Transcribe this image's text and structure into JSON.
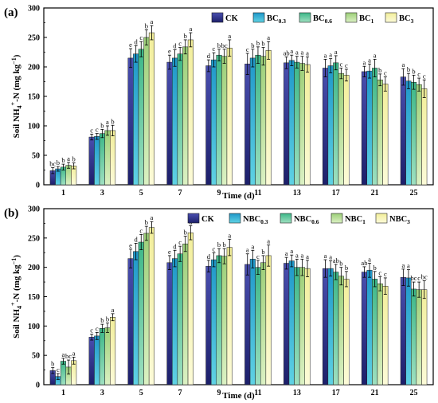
{
  "chart_data": [
    {
      "type": "bar",
      "panel_label": "(a)",
      "ylabel": "Soil NH4+-N (mg kg−1)",
      "xlabel": "Time (d)",
      "ylim": [
        0,
        300
      ],
      "yticks": [
        0,
        50,
        100,
        150,
        200,
        250,
        300
      ],
      "categories": [
        "1",
        "3",
        "5",
        "7",
        "9",
        "11",
        "13",
        "17",
        "21",
        "25"
      ],
      "legend_position": "top-right",
      "series": [
        {
          "name": "CK",
          "legend_base": "CK",
          "legend_sub": "",
          "color_top": "#4a4fb0",
          "color_bottom": "#1c1f6a",
          "values": [
            24,
            81,
            215,
            208,
            202,
            205,
            207,
            198,
            192,
            183
          ],
          "errors": [
            5,
            5,
            16,
            12,
            10,
            18,
            10,
            15,
            9,
            14
          ],
          "letters": [
            "bc",
            "c",
            "e",
            "e",
            "d",
            "c",
            "ab",
            "a",
            "a",
            "a"
          ]
        },
        {
          "name": "BC0.3",
          "legend_base": "BC",
          "legend_sub": "0.3",
          "color_top": "#1f97c9",
          "color_bottom": "#5fd2e4",
          "values": [
            27,
            82,
            222,
            215,
            212,
            215,
            211,
            202,
            193,
            176
          ],
          "errors": [
            4,
            5,
            14,
            14,
            12,
            15,
            9,
            12,
            12,
            13
          ],
          "letters": [
            "b",
            "c",
            "d",
            "d",
            "c",
            "b",
            "a",
            "a",
            "a",
            "b"
          ]
        },
        {
          "name": "BC0.6",
          "legend_base": "BC",
          "legend_sub": "0.6",
          "color_top": "#3cb788",
          "color_bottom": "#9ee0c0",
          "values": [
            30,
            87,
            230,
            222,
            220,
            220,
            208,
            207,
            198,
            174
          ],
          "errors": [
            5,
            7,
            13,
            11,
            10,
            14,
            10,
            12,
            15,
            12
          ],
          "letters": [
            "b",
            "b",
            "c",
            "c",
            "b",
            "b",
            "a",
            "a",
            "a",
            "b"
          ]
        },
        {
          "name": "BC1",
          "legend_base": "BC",
          "legend_sub": "1",
          "color_top": "#9ccf78",
          "color_bottom": "#dbf1c3",
          "values": [
            33,
            92,
            250,
            234,
            218,
            218,
            206,
            189,
            178,
            170
          ],
          "errors": [
            5,
            8,
            13,
            12,
            12,
            15,
            12,
            9,
            10,
            11
          ],
          "letters": [
            "a",
            "a",
            "b",
            "b",
            "bc",
            "b",
            "a",
            "c",
            "b",
            "c"
          ]
        },
        {
          "name": "BC3",
          "legend_base": "BC",
          "legend_sub": "3",
          "color_top": "#f2ee9a",
          "color_bottom": "#fcfbd8",
          "values": [
            32,
            92,
            258,
            246,
            232,
            228,
            204,
            186,
            171,
            163
          ],
          "errors": [
            5,
            9,
            12,
            12,
            14,
            15,
            13,
            10,
            12,
            15
          ],
          "letters": [
            "b",
            "b",
            "a",
            "a",
            "a",
            "a",
            "a",
            "c",
            "c",
            "c"
          ]
        }
      ]
    },
    {
      "type": "bar",
      "panel_label": "(b)",
      "ylabel": "Soil NH4+-N (mg kg−1)",
      "xlabel": "Time (d)",
      "ylim": [
        0,
        300
      ],
      "yticks": [
        0,
        50,
        100,
        150,
        200,
        250,
        300
      ],
      "categories": [
        "1",
        "3",
        "5",
        "7",
        "9",
        "11",
        "13",
        "17",
        "21",
        "25"
      ],
      "legend_position": "top-right",
      "series": [
        {
          "name": "CK",
          "legend_base": "CK",
          "legend_sub": "",
          "color_top": "#4a4fb0",
          "color_bottom": "#1c1f6a",
          "values": [
            24,
            81,
            215,
            208,
            202,
            205,
            207,
            198,
            192,
            183
          ],
          "errors": [
            5,
            5,
            16,
            12,
            10,
            18,
            10,
            15,
            9,
            14
          ],
          "letters": [
            "b",
            "c",
            "e",
            "e",
            "d",
            "a",
            "a",
            "a",
            "ab",
            "a"
          ]
        },
        {
          "name": "NBC0.3",
          "legend_base": "NBC",
          "legend_sub": "0.3",
          "color_top": "#1f97c9",
          "color_bottom": "#5fd2e4",
          "values": [
            14,
            83,
            227,
            215,
            213,
            214,
            211,
            198,
            195,
            182
          ],
          "errors": [
            5,
            6,
            14,
            14,
            12,
            15,
            10,
            13,
            12,
            14
          ],
          "letters": [
            "c",
            "c",
            "d",
            "d",
            "c",
            "a",
            "a",
            "a",
            "a",
            "a"
          ]
        },
        {
          "name": "NBC0.6",
          "legend_base": "NBC",
          "legend_sub": "0.6",
          "color_top": "#3cb788",
          "color_bottom": "#9ee0c0",
          "values": [
            40,
            96,
            243,
            223,
            220,
            200,
            200,
            192,
            180,
            163
          ],
          "errors": [
            5,
            7,
            13,
            13,
            12,
            12,
            14,
            13,
            13,
            12
          ],
          "letters": [
            "a",
            "b",
            "c",
            "c",
            "b",
            "c",
            "a",
            "ab",
            "b",
            "bc"
          ]
        },
        {
          "name": "NBC1",
          "legend_base": "NBC",
          "legend_sub": "1",
          "color_top": "#9ccf78",
          "color_bottom": "#dbf1c3",
          "values": [
            30,
            97,
            258,
            240,
            219,
            208,
            200,
            185,
            172,
            162
          ],
          "errors": [
            12,
            8,
            12,
            13,
            13,
            12,
            14,
            15,
            12,
            13
          ],
          "letters": [
            "bc",
            "b",
            "b",
            "b",
            "b",
            "b",
            "a",
            "b",
            "c",
            "c"
          ]
        },
        {
          "name": "NBC3",
          "legend_base": "NBC",
          "legend_sub": "3",
          "color_top": "#f2ee9a",
          "color_bottom": "#fcfbd8",
          "values": [
            41,
            115,
            268,
            259,
            234,
            220,
            198,
            180,
            168,
            162
          ],
          "errors": [
            6,
            6,
            10,
            12,
            14,
            18,
            14,
            13,
            14,
            15
          ],
          "letters": [
            "a",
            "a",
            "a",
            "a",
            "a",
            "a",
            "a",
            "b",
            "c",
            "bc"
          ]
        }
      ]
    }
  ]
}
